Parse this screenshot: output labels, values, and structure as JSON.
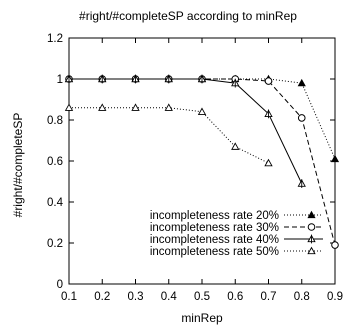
{
  "chart_data": {
    "type": "line",
    "title": "#right/#completeSP according to minRep",
    "xlabel": "minRep",
    "ylabel": "#right/#completeSP",
    "xlim": [
      0.1,
      0.9
    ],
    "ylim": [
      0,
      1.2
    ],
    "xticks": [
      "0.1",
      "0.2",
      "0.3",
      "0.4",
      "0.5",
      "0.6",
      "0.7",
      "0.8",
      "0.9"
    ],
    "yticks": [
      "0",
      "0.2",
      "0.4",
      "0.6",
      "0.8",
      "1",
      "1.2"
    ],
    "grid": false,
    "legend_position": "bottom-right",
    "series": [
      {
        "name": "incompleteness rate 20%",
        "marker": "filled-triangle",
        "line": "dotted",
        "x": [
          0.1,
          0.2,
          0.3,
          0.4,
          0.5,
          0.6,
          0.7,
          0.8,
          0.9
        ],
        "values": [
          1.0,
          1.0,
          1.0,
          1.0,
          1.0,
          1.0,
          1.0,
          0.98,
          0.61
        ]
      },
      {
        "name": "incompleteness rate 30%",
        "marker": "open-circle",
        "line": "dashed",
        "x": [
          0.1,
          0.2,
          0.3,
          0.4,
          0.5,
          0.6,
          0.7,
          0.8,
          0.9
        ],
        "values": [
          1.0,
          1.0,
          1.0,
          1.0,
          1.0,
          1.0,
          0.99,
          0.81,
          0.19
        ]
      },
      {
        "name": "incompleteness rate 40%",
        "marker": "triangle-cross",
        "line": "solid",
        "x": [
          0.1,
          0.2,
          0.3,
          0.4,
          0.5,
          0.6,
          0.7,
          0.8
        ],
        "values": [
          1.0,
          1.0,
          1.0,
          1.0,
          1.0,
          0.98,
          0.83,
          0.49
        ]
      },
      {
        "name": "incompleteness rate 50%",
        "marker": "open-triangle",
        "line": "dotted",
        "x": [
          0.1,
          0.2,
          0.3,
          0.4,
          0.5,
          0.6,
          0.7
        ],
        "values": [
          0.86,
          0.86,
          0.86,
          0.86,
          0.84,
          0.67,
          0.59
        ]
      }
    ]
  }
}
